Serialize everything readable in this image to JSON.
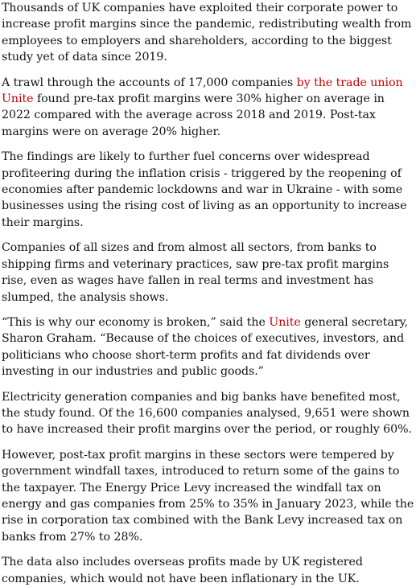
{
  "article": {
    "p1": "Thousands of UK companies have exploited their corporate power to increase profit margins since the pandemic, redistributing wealth from employees to employers and shareholders, according to the biggest study yet of data since 2019.",
    "p2": {
      "before": "A trawl through the accounts of 17,000 companies ",
      "link": "by the trade union Unite",
      "after": " found pre-tax profit margins were 30% higher on average in 2022 compared with the average across 2018 and 2019. Post-tax margins were on average 20% higher."
    },
    "p3": "The findings are likely to further fuel concerns over widespread profiteering during the inflation crisis - triggered by the reopening of economies after pandemic lockdowns and war in Ukraine - with some businesses using the rising cost of living as an opportunity to increase their margins.",
    "p4": "Companies of all sizes and from almost all sectors, from banks to shipping firms and veterinary practices, saw pre-tax profit margins rise, even as wages have fallen in real terms and investment has slumped, the analysis shows.",
    "p5": {
      "before": "“This is why our economy is broken,” said the ",
      "link": "Unite",
      "after": " general secretary, Sharon Graham. “Because of the choices of executives, investors, and politicians who choose short-term profits and fat dividends over investing in our industries and public goods.”"
    },
    "p6": "Electricity generation companies and big banks have benefited most, the study found. Of the 16,600 companies analysed, 9,651 were shown to have increased their profit margins over the period, or roughly 60%.",
    "p7": "However, post-tax profit margins in these sectors were tempered by government windfall taxes, introduced to return some of the gains to the taxpayer. The Energy Price Levy increased the windfall tax on energy and gas companies from 25% to 35% in January 2023, while the rise in corporation tax combined with the Bank Levy increased tax on banks from 27% to 28%.",
    "p8": "The data also includes overseas profits made by UK registered companies, which would not have been inflationary in the UK."
  },
  "colors": {
    "text": "#121212",
    "link": "#c70000",
    "background": "#ffffff"
  }
}
